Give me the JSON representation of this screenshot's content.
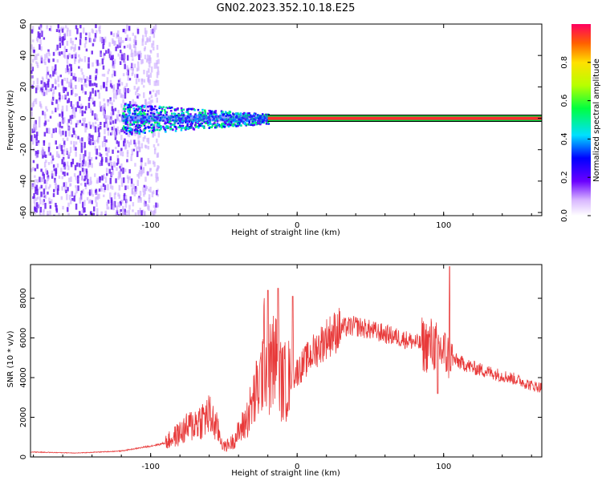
{
  "figure_title": "GN02.2023.352.10.18.E25",
  "colors": {
    "signal_line": "#e83a3a",
    "noise": "#7a22ee",
    "axes": "#000000"
  },
  "chart_data": [
    {
      "type": "heatmap",
      "title": "",
      "xlabel": "Height of straight line (km)",
      "ylabel": "Frequency (Hz)",
      "xlim": [
        -182,
        167
      ],
      "ylim": [
        -62,
        60
      ],
      "x_tick_labels": [
        "-100",
        "0",
        "100"
      ],
      "y_tick_labels": [
        "60",
        "40",
        "20",
        "0",
        "-20",
        "-40",
        "-60"
      ],
      "colorbar": {
        "label": "Normalized spectral amplitude",
        "range": [
          0,
          1
        ],
        "tick_labels": [
          "0.0",
          "0.2",
          "0.4",
          "0.6",
          "0.8"
        ]
      },
      "regions": [
        {
          "x_range": [
            -182,
            -95
          ],
          "description_value": "broadband noise",
          "amplitude": 0.15
        },
        {
          "x_range": [
            -120,
            -20
          ],
          "freq_range": [
            -10,
            10
          ],
          "amplitude": 0.45
        },
        {
          "x_range": [
            -20,
            167
          ],
          "freq": 0,
          "amplitude": 0.95
        }
      ]
    },
    {
      "type": "line",
      "title": "",
      "xlabel": "Height of straight line (km)",
      "ylabel": "SNR (10 * v/v)",
      "xlim": [
        -182,
        167
      ],
      "ylim": [
        0,
        9700
      ],
      "x_tick_labels": [
        "-100",
        "0",
        "100"
      ],
      "y_tick_labels": [
        "0",
        "2000",
        "4000",
        "6000",
        "8000"
      ],
      "series": [
        {
          "x": [
            -182,
            -150,
            -120,
            -100,
            -90,
            -80,
            -70,
            -60,
            -55,
            -50,
            -45,
            -40,
            -35,
            -30,
            -25,
            -22,
            -20,
            -15,
            -10,
            -5,
            0,
            10,
            20,
            30,
            40,
            50,
            60,
            70,
            80,
            88,
            92,
            96,
            100,
            104,
            110,
            120,
            130,
            140,
            150,
            160,
            167
          ],
          "y": [
            250,
            200,
            300,
            550,
            700,
            1200,
            1700,
            2100,
            1500,
            500,
            700,
            1200,
            1800,
            2800,
            3800,
            5500,
            4200,
            5000,
            3700,
            4000,
            4300,
            5200,
            6000,
            6500,
            6600,
            6400,
            6200,
            6000,
            5800,
            5600,
            5700,
            5500,
            5300,
            5000,
            4800,
            4500,
            4300,
            4100,
            3900,
            3600,
            3500
          ]
        }
      ],
      "spikes": [
        {
          "x": -20,
          "y": 8400
        },
        {
          "x": -13,
          "y": 8500
        },
        {
          "x": -3,
          "y": 8100
        },
        {
          "x": 96,
          "y": 3200
        },
        {
          "x": 104,
          "y": 9600
        }
      ]
    }
  ]
}
